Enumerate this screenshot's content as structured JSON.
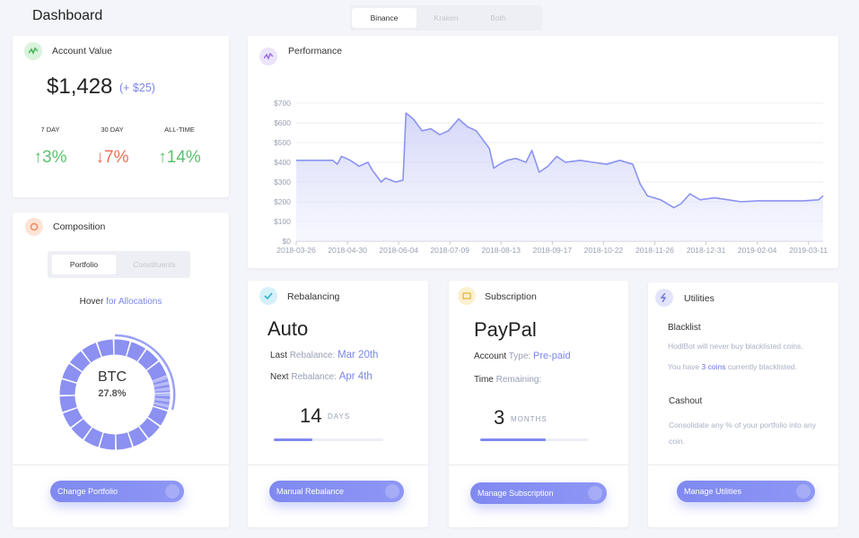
{
  "header": {
    "title": "Dashboard",
    "tabs": [
      "Binance",
      "Kraken",
      "Both"
    ]
  },
  "account": {
    "title": "Account Value",
    "value": "$1,428",
    "change": "(+ $25)",
    "periods": [
      {
        "label": "7 DAY",
        "value": "↑3%"
      },
      {
        "label": "30 DAY",
        "value": "↓7%"
      },
      {
        "label": "ALL-TIME",
        "value": "↑14%"
      }
    ]
  },
  "composition": {
    "title": "Composition",
    "tabs": [
      "Portfolio",
      "Constituents"
    ],
    "hint": "Hover",
    "hint_link": "for Allocations",
    "center_label": "BTC",
    "center_value": "27.8%",
    "button": "Change Portfolio"
  },
  "chart_data": {
    "type": "line",
    "title": "Performance",
    "color": "#8b93f0",
    "grid": true,
    "x": [
      "2018-03-26",
      "2018-04-07",
      "2018-04-20",
      "2018-04-23",
      "2018-04-26",
      "2018-05-02",
      "2018-05-08",
      "2018-05-14",
      "2018-05-17",
      "2018-05-20",
      "2018-05-23",
      "2018-05-26",
      "2018-06-02",
      "2018-06-07",
      "2018-06-09",
      "2018-06-14",
      "2018-06-20",
      "2018-06-26",
      "2018-07-02",
      "2018-07-08",
      "2018-07-15",
      "2018-07-21",
      "2018-07-27",
      "2018-08-01",
      "2018-08-05",
      "2018-08-08",
      "2018-08-12",
      "2018-08-17",
      "2018-08-23",
      "2018-08-30",
      "2018-09-03",
      "2018-09-08",
      "2018-09-14",
      "2018-09-20",
      "2018-09-26",
      "2018-10-06",
      "2018-10-15",
      "2018-10-24",
      "2018-11-02",
      "2018-11-11",
      "2018-11-16",
      "2018-11-21",
      "2018-11-30",
      "2018-12-09",
      "2018-12-14",
      "2018-12-20",
      "2018-12-27",
      "2019-01-06",
      "2019-01-15",
      "2019-01-24",
      "2019-02-05",
      "2019-02-21",
      "2019-03-08",
      "2019-03-18",
      "2019-03-21"
    ],
    "values": [
      410,
      410,
      410,
      390,
      430,
      410,
      380,
      400,
      360,
      330,
      300,
      320,
      300,
      310,
      650,
      620,
      560,
      570,
      540,
      560,
      620,
      580,
      560,
      510,
      470,
      370,
      390,
      410,
      420,
      400,
      460,
      350,
      380,
      430,
      400,
      410,
      400,
      390,
      410,
      390,
      290,
      230,
      210,
      170,
      190,
      240,
      210,
      220,
      210,
      200,
      205,
      205,
      205,
      210,
      230
    ],
    "xlim": [
      "2018-03-26",
      "2019-03-21"
    ],
    "xticks": [
      "2018-03-26",
      "2018-04-30",
      "2018-06-04",
      "2018-07-09",
      "2018-08-13",
      "2018-09-17",
      "2018-10-22",
      "2018-11-26",
      "2018-12-31",
      "2019-02-04",
      "2019-03-11"
    ],
    "ylim": [
      0,
      700
    ],
    "yticks": [
      {
        "value": 0,
        "label": "$0"
      },
      {
        "value": 100,
        "label": "$100"
      },
      {
        "value": 200,
        "label": "$200"
      },
      {
        "value": 300,
        "label": "$300"
      },
      {
        "value": 400,
        "label": "$400"
      },
      {
        "value": 500,
        "label": "$500"
      },
      {
        "value": 600,
        "label": "$600"
      },
      {
        "value": 700,
        "label": "$700"
      }
    ]
  },
  "rebalancing": {
    "title": "Rebalancing",
    "mode": "Auto",
    "last": {
      "label": "Last",
      "sublabel": "Rebalance:",
      "value": "Mar 20th"
    },
    "next": {
      "label": "Next",
      "sublabel": "Rebalance:",
      "value": "Apr 4th"
    },
    "countdown": "14",
    "unit": "DAYS",
    "button": "Manual Rebalance"
  },
  "subscription": {
    "title": "Subscription",
    "provider": "PayPal",
    "account": {
      "label": "Account",
      "sublabel": "Type:",
      "value": "Pre-paid"
    },
    "time": {
      "label": "Time",
      "sublabel": "Remaining:"
    },
    "remaining": "3",
    "unit": "MONTHS",
    "button": "Manage Subscription"
  },
  "utilities": {
    "title": "Utilities",
    "blacklist": {
      "title": "Blacklist",
      "description": "HodlBot will never buy blacklisted coins.",
      "count_before": "You have",
      "count_link": "3 coins",
      "count_after": "currently blacklisted."
    },
    "cashout": {
      "title": "Cashout",
      "description": "Consolidate any % of your portfolio into any coin."
    },
    "button": "Manage Utilities"
  }
}
